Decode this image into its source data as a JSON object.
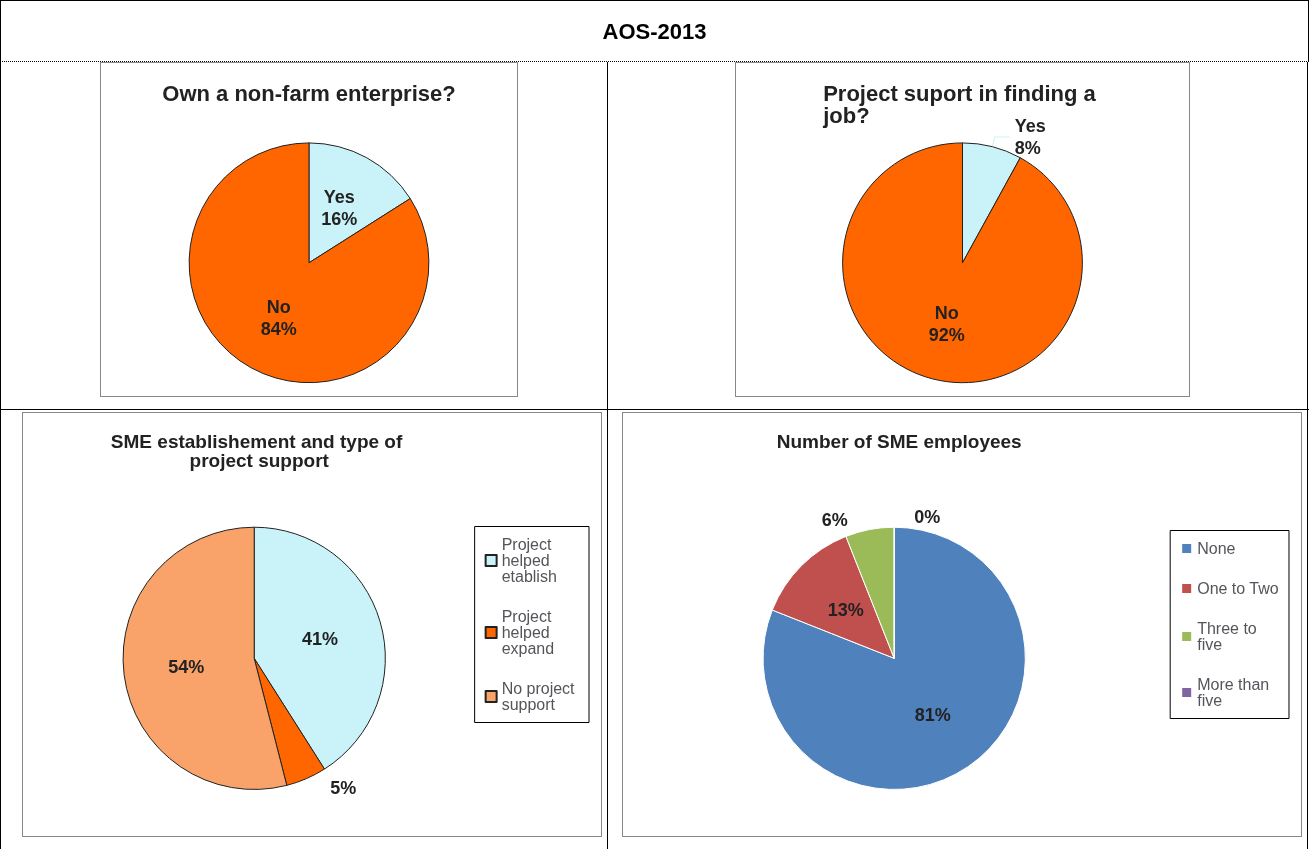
{
  "chart_data": [
    {
      "type": "other",
      "title": "AOS-2013"
    },
    {
      "type": "pie",
      "title": "Own a non-farm enterprise?",
      "categories": [
        "Yes",
        "No"
      ],
      "values": [
        16,
        84
      ],
      "colors": [
        "#c9f3f8",
        "#ff6600"
      ],
      "value_labels": [
        "16%",
        "84%"
      ],
      "legend": false
    },
    {
      "type": "pie",
      "title": "Project suport in finding a job?",
      "categories": [
        "Yes",
        "No"
      ],
      "values": [
        8,
        92
      ],
      "colors": [
        "#c9f3f8",
        "#ff6600"
      ],
      "value_labels": [
        "8%",
        "92%"
      ],
      "legend": false
    },
    {
      "type": "pie",
      "title": "SME establishement and type of project support",
      "categories": [
        "Project helped etablish",
        "Project helped expand",
        "No project support"
      ],
      "values": [
        41,
        5,
        54
      ],
      "colors": [
        "#c9f3f8",
        "#ff6600",
        "#f9a36a"
      ],
      "value_labels": [
        "41%",
        "5%",
        "54%"
      ],
      "legend": "right"
    },
    {
      "type": "pie",
      "title": "Number of SME employees",
      "categories": [
        "None",
        "One to Two",
        "Three to five",
        "More than five"
      ],
      "values": [
        81,
        13,
        6,
        0
      ],
      "colors": [
        "#4f81bd",
        "#c0504d",
        "#9bbb59",
        "#8064a2"
      ],
      "value_labels": [
        "81%",
        "13%",
        "6%",
        "0%"
      ],
      "legend": "right"
    }
  ]
}
